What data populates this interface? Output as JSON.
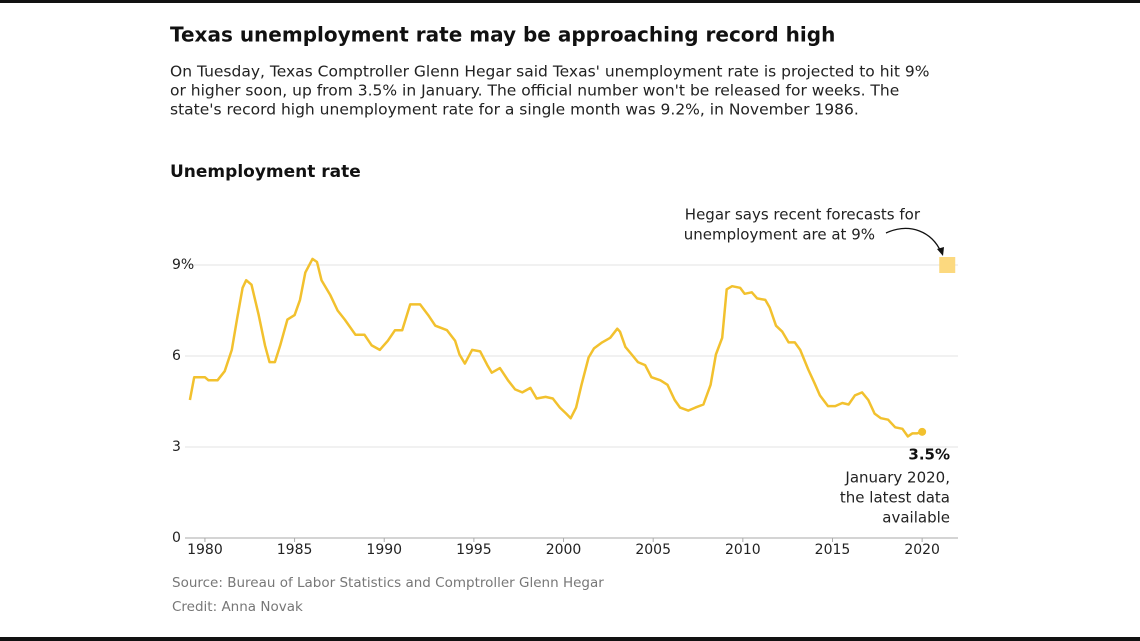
{
  "chart_data": {
    "type": "line",
    "title": "Texas unemployment rate may be approaching record high",
    "subtitle": [
      "On Tuesday, Texas Comptroller Glenn Hegar said Texas' unemployment rate is projected to hit 9%",
      "or higher soon, up from 3.5% in January. The official number won't be released for weeks. The",
      "state's record high unemployment rate for a single month was 9.2%, in November 1986."
    ],
    "chart_title": "Unemployment rate",
    "source": "Source: Bureau of Labor Statistics and Comptroller Glenn Hegar",
    "credit": "Credit: Anna Novak",
    "x": [
      1979.16,
      1979.4,
      1980,
      1980.2,
      1980.7,
      1981.1,
      1981.5,
      1981.8,
      1982.1,
      1982.3,
      1982.6,
      1983,
      1983.35,
      1983.6,
      1983.9,
      1984.2,
      1984.6,
      1985,
      1985.3,
      1985.6,
      1986,
      1986.25,
      1986.5,
      1987,
      1987.4,
      1987.8,
      1988.4,
      1988.9,
      1989.3,
      1989.75,
      1990.2,
      1990.6,
      1991,
      1991.45,
      1992,
      1992.45,
      1992.85,
      1993.5,
      1993.95,
      1994.2,
      1994.5,
      1994.9,
      1995.35,
      1995.75,
      1996,
      1996.45,
      1996.9,
      1997.3,
      1997.7,
      1998.15,
      1998.5,
      1999,
      1999.4,
      1999.8,
      2000.15,
      2000.4,
      2000.7,
      2001,
      2001.4,
      2001.7,
      2002.15,
      2002.6,
      2003,
      2003.15,
      2003.45,
      2003.8,
      2004.15,
      2004.55,
      2004.9,
      2005.4,
      2005.8,
      2006.2,
      2006.5,
      2006.95,
      2007.35,
      2007.8,
      2008.2,
      2008.5,
      2008.85,
      2009.1,
      2009.4,
      2009.85,
      2010.1,
      2010.5,
      2010.8,
      2011.25,
      2011.5,
      2011.85,
      2012.2,
      2012.55,
      2012.9,
      2013.2,
      2013.65,
      2014,
      2014.3,
      2014.75,
      2015.15,
      2015.55,
      2015.9,
      2016.25,
      2016.65,
      2017,
      2017.35,
      2017.7,
      2018.1,
      2018.5,
      2018.9,
      2019.2,
      2019.45,
      2019.7,
      2020
    ],
    "series": [
      {
        "name": "Unemployment rate",
        "color": "#f2c12e",
        "values": [
          4.55,
          5.3,
          5.3,
          5.2,
          5.2,
          5.5,
          6.2,
          7.25,
          8.25,
          8.5,
          8.35,
          7.35,
          6.35,
          5.8,
          5.8,
          6.35,
          7.2,
          7.35,
          7.85,
          8.75,
          9.2,
          9.1,
          8.5,
          8.0,
          7.5,
          7.2,
          6.7,
          6.7,
          6.35,
          6.2,
          6.5,
          6.85,
          6.85,
          7.7,
          7.7,
          7.35,
          7.0,
          6.85,
          6.5,
          6.05,
          5.75,
          6.2,
          6.15,
          5.7,
          5.45,
          5.6,
          5.2,
          4.9,
          4.8,
          4.95,
          4.6,
          4.65,
          4.6,
          4.3,
          4.1,
          3.95,
          4.3,
          5.05,
          5.95,
          6.25,
          6.45,
          6.6,
          6.9,
          6.8,
          6.3,
          6.05,
          5.8,
          5.7,
          5.3,
          5.2,
          5.05,
          4.55,
          4.3,
          4.2,
          4.3,
          4.4,
          5.05,
          6.05,
          6.6,
          8.2,
          8.3,
          8.25,
          8.05,
          8.1,
          7.9,
          7.85,
          7.6,
          7.0,
          6.8,
          6.45,
          6.45,
          6.2,
          5.55,
          5.1,
          4.7,
          4.35,
          4.35,
          4.45,
          4.4,
          4.7,
          4.8,
          4.55,
          4.1,
          3.95,
          3.9,
          3.65,
          3.6,
          3.35,
          3.45,
          3.45,
          3.5
        ]
      }
    ],
    "end_value_label": "3.5%",
    "latest_annotation": [
      "January 2020,",
      "the latest data",
      "available"
    ],
    "forecast": {
      "x": 2021.4,
      "value": 9,
      "color": "#fcd97f"
    },
    "forecast_annotation": [
      "Hegar says recent forecasts for",
      "unemployment are at 9%"
    ],
    "xlim": [
      1979,
      2022
    ],
    "xticks": [
      1980,
      1985,
      1990,
      1995,
      2000,
      2005,
      2010,
      2015,
      2020
    ],
    "ylim": [
      0,
      9
    ],
    "yticks": [
      0,
      3,
      6,
      {
        "value": 9,
        "label": "9%"
      }
    ],
    "grid": true
  }
}
